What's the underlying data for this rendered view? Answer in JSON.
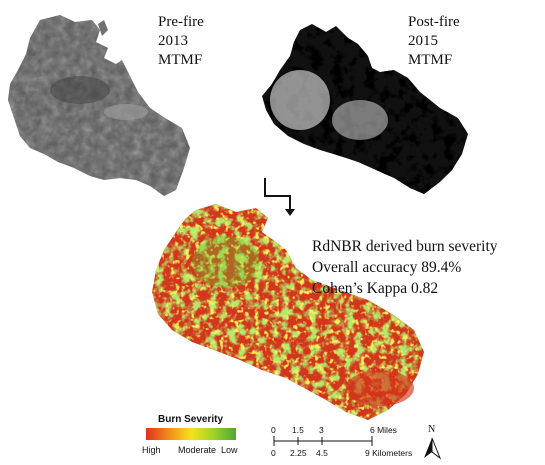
{
  "pre_fire": {
    "line1": "Pre-fire",
    "line2": "2013",
    "line3": "MTMF"
  },
  "post_fire": {
    "line1": "Post-fire",
    "line2": "2015",
    "line3": "MTMF"
  },
  "severity_map": {
    "line1": "RdNBR derived burn severity",
    "line2": "Overall accuracy 89.4%",
    "line3": "Cohen’s Kappa 0.82"
  },
  "legend": {
    "title": "Burn Severity",
    "high": "High",
    "moderate": "Moderate",
    "low": "Low",
    "colors": [
      "#e0301e",
      "#f08a1a",
      "#f5e21a",
      "#9ed42a",
      "#4aa832"
    ]
  },
  "scale_bar": {
    "miles_ticks": [
      "0",
      "1.5",
      "3",
      "6 Miles"
    ],
    "km_ticks": [
      "0",
      "2.25",
      "4.5",
      "9 Kilometers"
    ]
  },
  "north_arrow": {
    "label": "N"
  }
}
